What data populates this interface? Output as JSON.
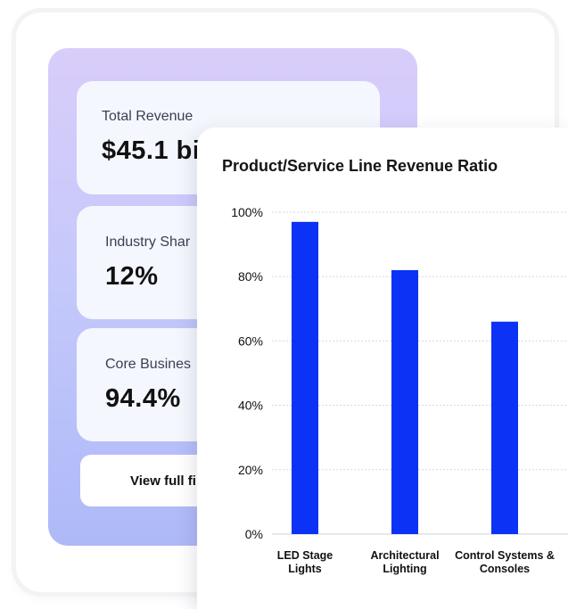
{
  "metrics": {
    "total_revenue": {
      "label": "Total Revenue",
      "value": "$45.1 bi"
    },
    "industry_share": {
      "label": "Industry Shar",
      "value": "12%"
    },
    "core_business": {
      "label": "Core Busines",
      "value": "94.4%"
    }
  },
  "view_report_label": "View full fi",
  "colors": {
    "bar": "#0b32f5",
    "panel_top": "#d9cdfa",
    "panel_bottom": "#aeb9f8"
  },
  "chart_data": {
    "type": "bar",
    "title": "Product/Service Line Revenue Ratio",
    "categories": [
      [
        "LED Stage",
        "Lights"
      ],
      [
        "Architectural",
        "Lighting"
      ],
      [
        "Control Systems &",
        "Consoles"
      ]
    ],
    "values": [
      97,
      82,
      66
    ],
    "ylim": [
      0,
      100
    ],
    "yticks": [
      {
        "value": 0,
        "label": "0%"
      },
      {
        "value": 20,
        "label": "20%"
      },
      {
        "value": 40,
        "label": "40%"
      },
      {
        "value": 60,
        "label": "60%"
      },
      {
        "value": 80,
        "label": "80%"
      },
      {
        "value": 100,
        "label": "100%"
      }
    ],
    "xlabel": "",
    "ylabel": ""
  }
}
